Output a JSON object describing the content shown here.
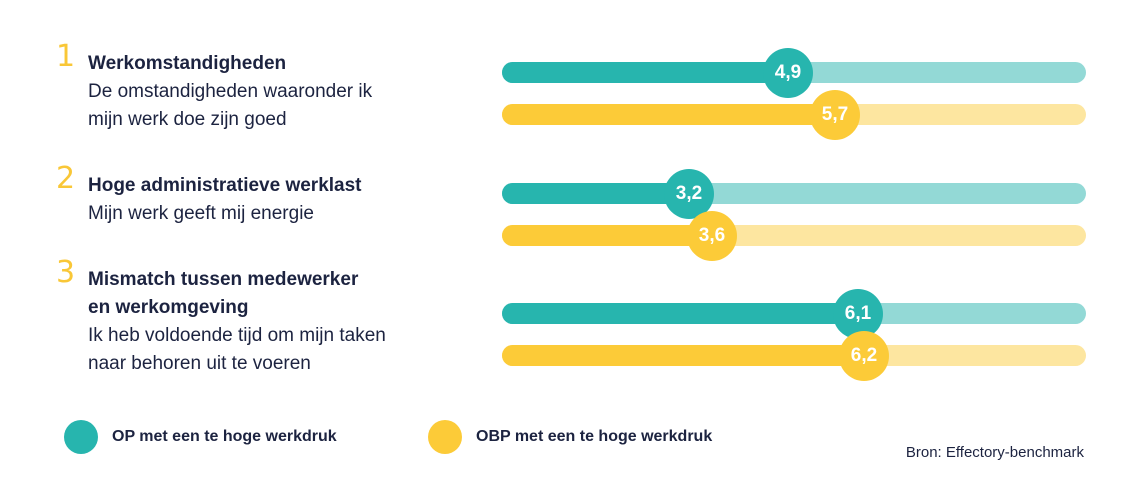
{
  "colors": {
    "series_a": "#27b5ae",
    "series_a_light": "#93d9d6",
    "series_b": "#fccb38",
    "series_b_light": "#fde6a0"
  },
  "items": [
    {
      "number": "1",
      "title": "Werkomstandigheden",
      "subtitle": "De omstandigheden waaronder ik\nmijn werk doe zijn goed"
    },
    {
      "number": "2",
      "title": "Hoge administratieve werklast",
      "subtitle": "Mijn werk geeft mij energie"
    },
    {
      "number": "3",
      "title": "Mismatch tussen medewerker\nen werkomgeving",
      "subtitle": "Ik heb voldoende tijd om mijn taken\nnaar behoren uit te voeren"
    }
  ],
  "legend": {
    "series_a": "OP met een te hoge werkdruk",
    "series_b": "OBP met een te hoge werkdruk"
  },
  "source": "Bron: Effectory-benchmark",
  "chart_data": {
    "type": "bar",
    "orientation": "horizontal",
    "categories": [
      "Werkomstandigheden",
      "Hoge administratieve werklast",
      "Mismatch tussen medewerker en werkomgeving"
    ],
    "xlim": [
      0,
      10
    ],
    "series": [
      {
        "name": "OP met een te hoge werkdruk",
        "values": [
          4.9,
          3.2,
          6.1
        ],
        "labels": [
          "4,9",
          "3,2",
          "6,1"
        ]
      },
      {
        "name": "OBP met een te hoge werkdruk",
        "values": [
          5.7,
          3.6,
          6.2
        ],
        "labels": [
          "5,7",
          "3,6",
          "6,2"
        ]
      }
    ]
  }
}
